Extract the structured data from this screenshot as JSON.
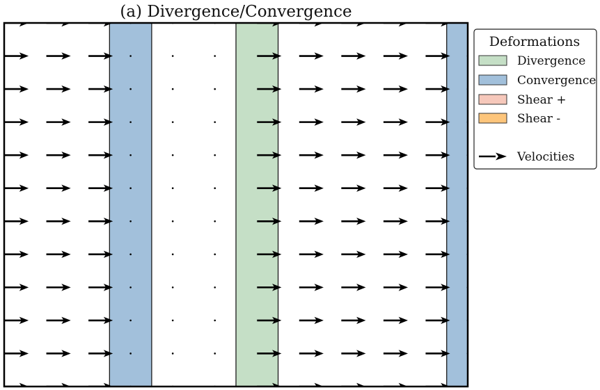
{
  "chart_data": {
    "type": "quiver",
    "title": "(a) Divergence/Convergence",
    "xlabel": "",
    "ylabel": "",
    "xlim": [
      0,
      11
    ],
    "ylim": [
      0,
      11
    ],
    "grid": false,
    "legend": {
      "placement": "outside-right",
      "title": "Deformations",
      "entries": [
        {
          "label": "Divergence",
          "kind": "patch",
          "color": "#c5dfc6"
        },
        {
          "label": "Convergence",
          "kind": "patch",
          "color": "#a2c0db"
        },
        {
          "label": "Shear +",
          "kind": "patch",
          "color": "#f6c8bb"
        },
        {
          "label": "Shear -",
          "kind": "patch",
          "color": "#fdc57b"
        },
        {
          "label": "Velocities",
          "kind": "arrow",
          "color": "#000000"
        }
      ]
    },
    "regions": [
      {
        "type": "Convergence",
        "x_start": 2.5,
        "x_end": 3.5
      },
      {
        "type": "Divergence",
        "x_start": 5.5,
        "x_end": 6.5
      },
      {
        "type": "Convergence",
        "x_start": 10.5,
        "x_end": 11.0
      }
    ],
    "velocity_field": {
      "x": [
        0,
        1,
        2,
        3,
        4,
        5,
        6,
        7,
        8,
        9,
        10,
        11
      ],
      "y": [
        0,
        1,
        2,
        3,
        4,
        5,
        6,
        7,
        8,
        9,
        10,
        11
      ],
      "u_by_column": [
        1,
        1,
        1,
        0,
        0,
        0,
        1,
        1,
        1,
        1,
        1,
        0
      ],
      "v": 0
    }
  }
}
